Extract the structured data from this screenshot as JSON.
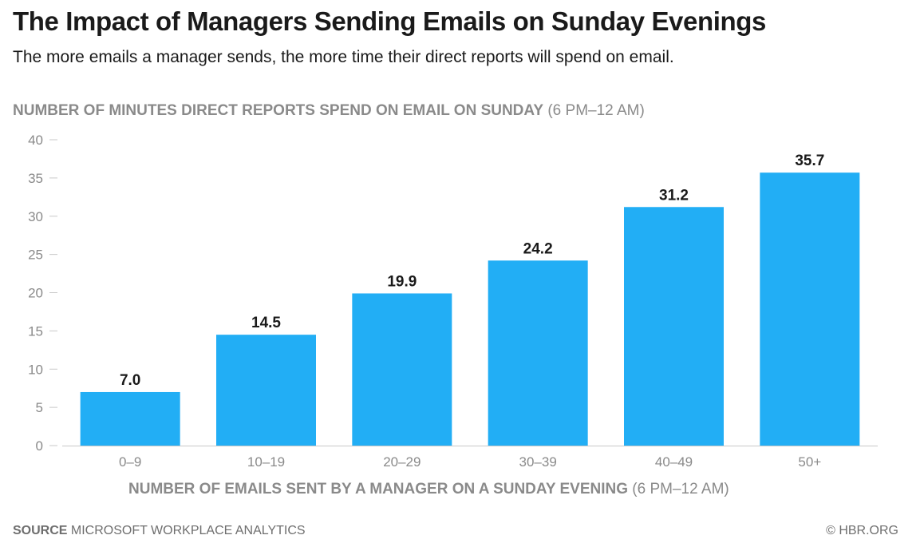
{
  "chart_data": {
    "type": "bar",
    "title": "The Impact of Managers Sending Emails on Sunday Evenings",
    "subtitle": "The more emails a manager sends, the more time their direct reports will spend on email.",
    "ylabel_bold": "NUMBER OF MINUTES DIRECT REPORTS SPEND ON EMAIL ON SUNDAY",
    "ylabel_rest": "(6 PM–12 AM)",
    "xlabel_bold": "NUMBER OF EMAILS SENT BY A MANAGER ON A SUNDAY EVENING",
    "xlabel_rest": "(6 PM–12 AM)",
    "categories": [
      "0–9",
      "10–19",
      "20–29",
      "30–39",
      "40–49",
      "50+"
    ],
    "values": [
      7.0,
      14.5,
      19.9,
      24.2,
      31.2,
      35.7
    ],
    "value_labels": [
      "7.0",
      "14.5",
      "19.9",
      "24.2",
      "31.2",
      "35.7"
    ],
    "yticks": [
      0,
      5,
      10,
      15,
      20,
      25,
      30,
      35,
      40
    ],
    "ylim": [
      0,
      40
    ],
    "grid": false,
    "bar_color": "#22aef5"
  },
  "footer": {
    "source_bold": "SOURCE",
    "source_text": "MICROSOFT WORKPLACE ANALYTICS",
    "credit": "© HBR.ORG"
  }
}
